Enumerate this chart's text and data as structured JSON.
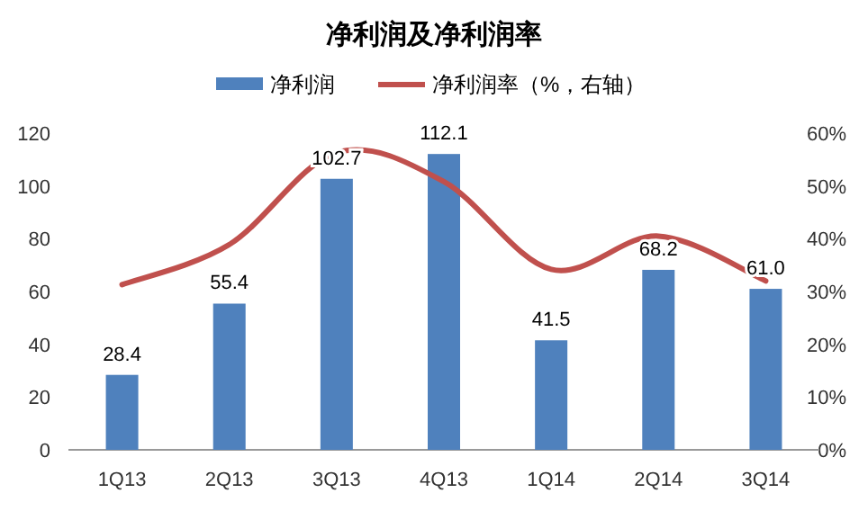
{
  "chart_data": {
    "type": "bar",
    "title": "净利润及净利润率",
    "categories": [
      "1Q13",
      "2Q13",
      "3Q13",
      "4Q13",
      "1Q14",
      "2Q14",
      "3Q14"
    ],
    "series": [
      {
        "name": "净利润",
        "color": "#4f81bd",
        "values": [
          28.4,
          55.4,
          102.7,
          112.1,
          41.5,
          68.2,
          61.0
        ],
        "value_labels": [
          "28.4",
          "55.4",
          "102.7",
          "112.1",
          "41.5",
          "68.2",
          "61.0"
        ]
      },
      {
        "name": "净利润率（%，右轴）",
        "type": "line",
        "axis": "y2",
        "color": "#c0504d",
        "values": [
          31.3,
          38.9,
          56.3,
          50.8,
          34.2,
          40.5,
          32.0
        ]
      }
    ],
    "ylim": [
      0,
      120
    ],
    "yticks": [
      0,
      20,
      40,
      60,
      80,
      100,
      120
    ],
    "y2lim": [
      0,
      60
    ],
    "y2ticks": [
      {
        "value": 0,
        "label": "0%"
      },
      {
        "value": 10,
        "label": "10%"
      },
      {
        "value": 20,
        "label": "20%"
      },
      {
        "value": 30,
        "label": "30%"
      },
      {
        "value": 40,
        "label": "40%"
      },
      {
        "value": 50,
        "label": "50%"
      },
      {
        "value": 60,
        "label": "60%"
      }
    ],
    "legend": "top",
    "marker": "none",
    "line_style": "solid"
  }
}
